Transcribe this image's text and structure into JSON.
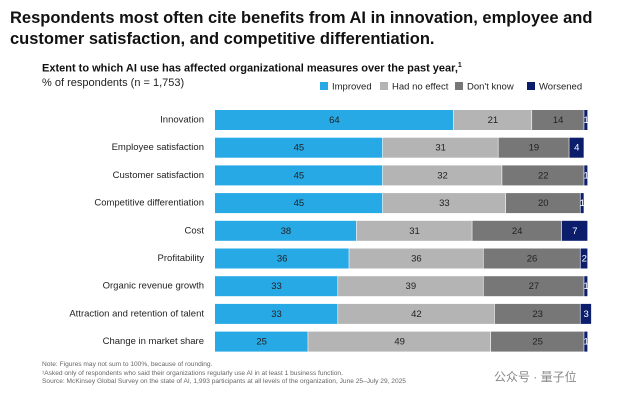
{
  "chart_data": {
    "type": "stacked_bar_horizontal",
    "title": "Respondents most often cite benefits from AI in innovation, employee and customer satisfaction, and competitive differentiation.",
    "subtitle": "Extent to which AI use has affected organizational measures over the past year,",
    "subtitle_footnote_marker": "1",
    "unit_label": "% of respondents (n = 1,753)",
    "categories": [
      "Innovation",
      "Employee satisfaction",
      "Customer satisfaction",
      "Competitive differentiation",
      "Cost",
      "Profitability",
      "Organic revenue growth",
      "Attraction and retention of talent",
      "Change in market share"
    ],
    "series": [
      {
        "name": "Improved",
        "color": "#27a9e6",
        "values": [
          64,
          45,
          45,
          45,
          38,
          36,
          33,
          33,
          25
        ]
      },
      {
        "name": "Had no effect",
        "color": "#b4b4b4",
        "values": [
          21,
          31,
          32,
          33,
          31,
          36,
          39,
          42,
          49
        ]
      },
      {
        "name": "Don't know",
        "color": "#777777",
        "values": [
          14,
          19,
          22,
          20,
          24,
          26,
          27,
          23,
          25
        ]
      },
      {
        "name": "Worsened",
        "color": "#0b1d6b",
        "values": [
          1,
          4,
          1,
          1,
          7,
          2,
          1,
          3,
          1
        ]
      }
    ],
    "xlim": [
      0,
      100
    ],
    "notes": [
      "Note: Figures may not sum to 100%, because of rounding.",
      "¹Asked only of respondents who said their organizations regularly use AI in at least 1 business function.",
      "Source: McKinsey Global Survey on the state of AI, 1,993 participants at all levels of the organization, June 25–July 29, 2025"
    ],
    "watermark": "公众号 · 量子位"
  }
}
